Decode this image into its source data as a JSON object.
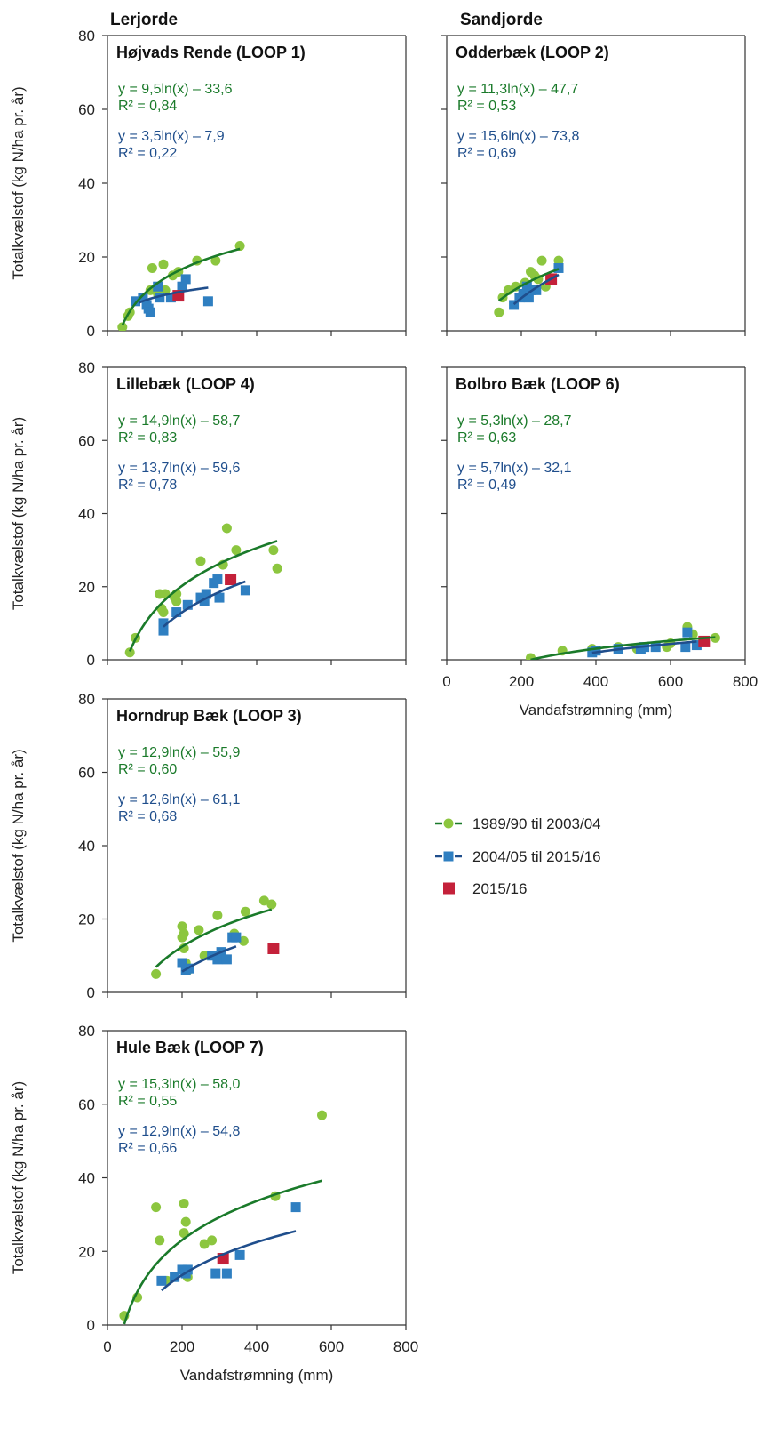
{
  "column_titles": {
    "left": "Lerjorde",
    "right": "Sandjorde"
  },
  "y_axis_label": "Totalkvælstof (kg N/ha pr. år)",
  "x_axis_label": "Vandafstrømning (mm)",
  "x_ticks": [
    "0",
    "200",
    "400",
    "600",
    "800"
  ],
  "y_ticks": [
    "0",
    "20",
    "40",
    "60",
    "80"
  ],
  "colors": {
    "green_series": "#8cc63f",
    "green_line": "#1a7a2a",
    "blue_series": "#2f7fc1",
    "blue_line": "#1f4e8c",
    "red_marker": "#c4213a",
    "axis": "#333333"
  },
  "legend": [
    {
      "label": "1989/90 til 2003/04"
    },
    {
      "label": "2004/05 til 2015/16"
    },
    {
      "label": "2015/16"
    }
  ],
  "chart_data": [
    {
      "type": "scatter",
      "title": "Højvads Rende (LOOP 1)",
      "xlim": [
        0,
        800
      ],
      "ylim": [
        0,
        80
      ],
      "eq_green": "y = 9,5ln(x) – 33,6",
      "r2_green": "R² = 0,84",
      "eq_blue": "y = 3,5ln(x) – 7,9",
      "r2_blue": "R² = 0,22",
      "series": [
        {
          "name": "1989/90 til 2003/04",
          "kind": "green",
          "x": [
            40,
            55,
            60,
            95,
            115,
            120,
            135,
            150,
            155,
            175,
            190,
            240,
            290,
            355
          ],
          "y": [
            1,
            4,
            5,
            9,
            11,
            17,
            10,
            18,
            11,
            15,
            16,
            19,
            19,
            23
          ],
          "fit": {
            "a": 9.5,
            "b": -33.6,
            "xrange": [
              40,
              355
            ]
          }
        },
        {
          "name": "2004/05 til 2015/16",
          "kind": "blue",
          "x": [
            75,
            95,
            105,
            110,
            115,
            135,
            140,
            170,
            200,
            210,
            270
          ],
          "y": [
            8,
            9,
            7,
            6,
            5,
            12,
            9,
            9,
            12,
            14,
            8
          ],
          "fit": {
            "a": 3.5,
            "b": -7.9,
            "xrange": [
              85,
              270
            ]
          }
        },
        {
          "name": "2015/16",
          "kind": "red",
          "x": [
            190
          ],
          "y": [
            9.5
          ]
        }
      ]
    },
    {
      "type": "scatter",
      "title": "Odderbæk (LOOP 2)",
      "xlim": [
        0,
        800
      ],
      "ylim": [
        0,
        80
      ],
      "eq_green": "y = 11,3ln(x) – 47,7",
      "r2_green": "R² = 0,53",
      "eq_blue": "y = 15,6ln(x) – 73,8",
      "r2_blue": "R² = 0,69",
      "series": [
        {
          "name": "1989/90 til 2003/04",
          "kind": "green",
          "x": [
            140,
            150,
            165,
            185,
            210,
            225,
            235,
            245,
            255,
            265,
            300
          ],
          "y": [
            5,
            9,
            11,
            12,
            13,
            16,
            15,
            14,
            19,
            12,
            19
          ],
          "fit": {
            "a": 11.3,
            "b": -47.7,
            "xrange": [
              140,
              300
            ]
          }
        },
        {
          "name": "2004/05 til 2015/16",
          "kind": "blue",
          "x": [
            180,
            195,
            205,
            215,
            220,
            225,
            240,
            300
          ],
          "y": [
            7,
            9,
            10,
            12,
            9,
            11,
            11,
            17
          ],
          "fit": {
            "a": 15.6,
            "b": -73.8,
            "xrange": [
              180,
              300
            ]
          }
        },
        {
          "name": "2015/16",
          "kind": "red",
          "x": [
            280
          ],
          "y": [
            14
          ]
        }
      ]
    },
    {
      "type": "scatter",
      "title": "Lillebæk (LOOP 4)",
      "xlim": [
        0,
        800
      ],
      "ylim": [
        0,
        80
      ],
      "eq_green": "y = 14,9ln(x) – 58,7",
      "r2_green": "R² = 0,83",
      "eq_blue": "y = 13,7ln(x) – 59,6",
      "r2_blue": "R² = 0,78",
      "series": [
        {
          "name": "1989/90 til 2003/04",
          "kind": "green",
          "x": [
            60,
            75,
            140,
            145,
            155,
            150,
            180,
            185,
            185,
            250,
            310,
            320,
            345,
            445,
            455
          ],
          "y": [
            2,
            6,
            18,
            14,
            18,
            13,
            17,
            18,
            16,
            27,
            26,
            36,
            30,
            30,
            25
          ],
          "fit": {
            "a": 14.9,
            "b": -58.7,
            "xrange": [
              60,
              455
            ]
          }
        },
        {
          "name": "2004/05 til 2015/16",
          "kind": "blue",
          "x": [
            150,
            150,
            185,
            215,
            250,
            260,
            265,
            285,
            295,
            300,
            370
          ],
          "y": [
            8,
            10,
            13,
            15,
            17,
            16,
            18,
            21,
            22,
            17,
            19
          ],
          "fit": {
            "a": 13.7,
            "b": -59.6,
            "xrange": [
              150,
              370
            ]
          }
        },
        {
          "name": "2015/16",
          "kind": "red",
          "x": [
            330
          ],
          "y": [
            22
          ]
        }
      ]
    },
    {
      "type": "scatter",
      "title": "Bolbro Bæk (LOOP 6)",
      "xlim": [
        0,
        800
      ],
      "ylim": [
        0,
        80
      ],
      "eq_green": "y = 5,3ln(x) – 28,7",
      "r2_green": "R² = 0,63",
      "eq_blue": "y = 5,7ln(x) – 32,1",
      "r2_blue": "R² = 0,49",
      "series": [
        {
          "name": "1989/90 til 2003/04",
          "kind": "green",
          "x": [
            225,
            310,
            390,
            460,
            510,
            600,
            590,
            645,
            660,
            720
          ],
          "y": [
            0.5,
            2.5,
            3,
            3.5,
            3,
            4.5,
            3.5,
            9,
            7,
            6
          ],
          "fit": {
            "a": 5.3,
            "b": -28.7,
            "xrange": [
              225,
              720
            ]
          }
        },
        {
          "name": "2004/05 til 2015/16",
          "kind": "blue",
          "x": [
            390,
            400,
            460,
            520,
            530,
            560,
            640,
            645,
            670
          ],
          "y": [
            2,
            2.5,
            3,
            3,
            3.5,
            3.5,
            3.5,
            7.5,
            4
          ],
          "fit": {
            "a": 5.7,
            "b": -32.1,
            "xrange": [
              390,
              670
            ]
          }
        },
        {
          "name": "2015/16",
          "kind": "red",
          "x": [
            690
          ],
          "y": [
            5
          ]
        }
      ]
    },
    {
      "type": "scatter",
      "title": "Horndrup Bæk (LOOP 3)",
      "xlim": [
        0,
        800
      ],
      "ylim": [
        0,
        80
      ],
      "eq_green": "y = 12,9ln(x) – 55,9",
      "r2_green": "R² = 0,60",
      "eq_blue": "y = 12,6ln(x) – 61,1",
      "r2_blue": "R² = 0,68",
      "series": [
        {
          "name": "1989/90 til 2003/04",
          "kind": "green",
          "x": [
            130,
            200,
            200,
            205,
            205,
            210,
            215,
            245,
            260,
            295,
            340,
            365,
            370,
            420,
            440
          ],
          "y": [
            5,
            18,
            15,
            16,
            12,
            8,
            6,
            17,
            10,
            21,
            16,
            14,
            22,
            25,
            24
          ],
          "fit": {
            "a": 12.9,
            "b": -55.9,
            "xrange": [
              130,
              440
            ]
          }
        },
        {
          "name": "2004/05 til 2015/16",
          "kind": "blue",
          "x": [
            200,
            210,
            220,
            280,
            295,
            305,
            320,
            335,
            345
          ],
          "y": [
            8,
            6,
            6.5,
            10,
            9,
            11,
            9,
            15,
            15
          ],
          "fit": {
            "a": 12.6,
            "b": -61.1,
            "xrange": [
              200,
              345
            ]
          }
        },
        {
          "name": "2015/16",
          "kind": "red",
          "x": [
            445
          ],
          "y": [
            12
          ]
        }
      ]
    },
    {
      "type": "scatter",
      "title": "Hule Bæk (LOOP 7)",
      "xlim": [
        0,
        800
      ],
      "ylim": [
        0,
        80
      ],
      "eq_green": "y = 15,3ln(x) – 58,0",
      "r2_green": "R² = 0,55",
      "eq_blue": "y = 12,9ln(x) – 54,8",
      "r2_blue": "R² = 0,66",
      "series": [
        {
          "name": "1989/90 til 2003/04",
          "kind": "green",
          "x": [
            45,
            80,
            130,
            140,
            160,
            205,
            205,
            210,
            215,
            260,
            280,
            450,
            575
          ],
          "y": [
            2.5,
            7.5,
            32,
            23,
            12,
            33,
            25,
            28,
            13,
            22,
            23,
            35,
            57
          ],
          "fit": {
            "a": 15.3,
            "b": -58.0,
            "xrange": [
              45,
              575
            ]
          }
        },
        {
          "name": "2004/05 til 2015/16",
          "kind": "blue",
          "x": [
            145,
            180,
            200,
            210,
            215,
            290,
            320,
            355,
            505
          ],
          "y": [
            12,
            13,
            15,
            14,
            15,
            14,
            14,
            19,
            32
          ],
          "fit": {
            "a": 12.9,
            "b": -54.8,
            "xrange": [
              145,
              505
            ]
          }
        },
        {
          "name": "2015/16",
          "kind": "red",
          "x": [
            310
          ],
          "y": [
            18
          ]
        }
      ]
    }
  ]
}
